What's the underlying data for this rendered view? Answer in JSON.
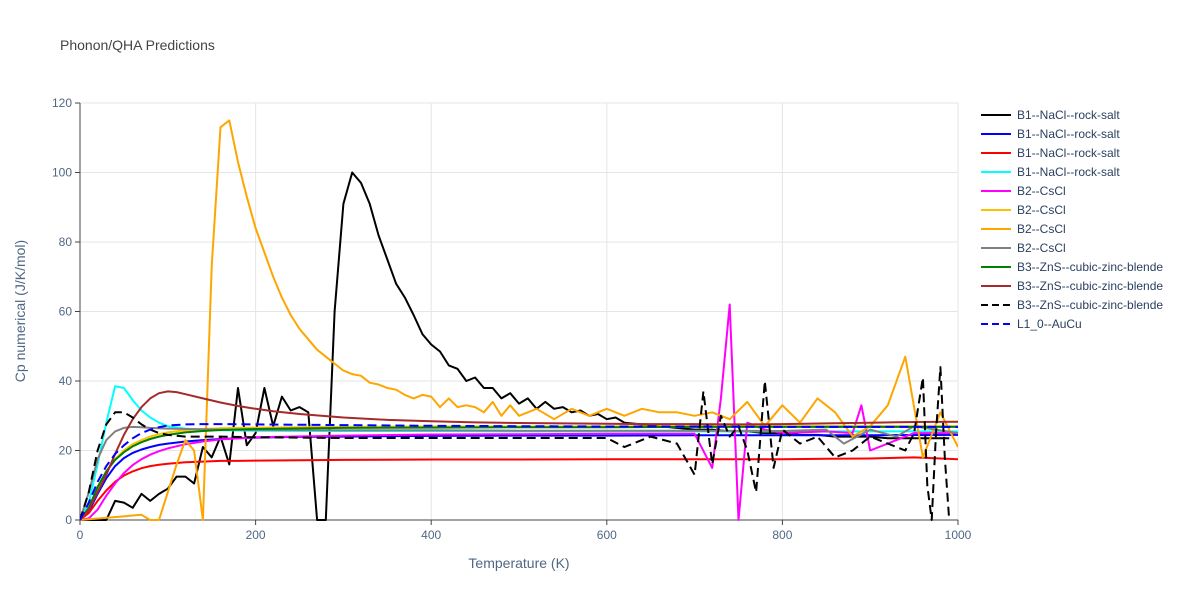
{
  "chart_data": {
    "type": "line",
    "title": "Phonon/QHA Predictions",
    "xlabel": "Temperature (K)",
    "ylabel": "Cp numerical (J/K/mol)",
    "xlim": [
      0,
      1000
    ],
    "ylim": [
      0,
      120
    ],
    "xticks": [
      0,
      200,
      400,
      600,
      800,
      1000
    ],
    "yticks": [
      0,
      20,
      40,
      60,
      80,
      100,
      120
    ],
    "grid": true,
    "legend": "right",
    "series": [
      {
        "name": "B1--NaCl--rock-salt",
        "color": "#000000",
        "dash": "solid",
        "x": [
          0,
          10,
          20,
          30,
          40,
          50,
          60,
          70,
          80,
          90,
          100,
          110,
          120,
          130,
          140,
          150,
          160,
          170,
          180,
          190,
          200,
          210,
          220,
          230,
          240,
          250,
          260,
          270,
          280,
          290,
          300,
          310,
          320,
          330,
          340,
          350,
          360,
          370,
          380,
          390,
          400,
          410,
          420,
          430,
          440,
          450,
          460,
          470,
          480,
          490,
          500,
          510,
          520,
          530,
          540,
          550,
          560,
          570,
          580,
          590,
          600,
          610,
          620,
          640,
          660,
          680,
          700,
          720,
          740,
          760,
          780,
          800,
          820,
          840,
          860,
          880,
          900,
          920,
          940,
          960,
          980,
          990
        ],
        "y": [
          0,
          0,
          0,
          0,
          5.5,
          5,
          3.5,
          7.5,
          5.5,
          7.5,
          9,
          12.5,
          12.5,
          10.5,
          21,
          18,
          24,
          16,
          38,
          21.5,
          25,
          38,
          27,
          35.5,
          31.5,
          32.5,
          31,
          0,
          0,
          60,
          91,
          100,
          97,
          91,
          82,
          75,
          68,
          64,
          59,
          53.5,
          50.5,
          48.5,
          44.5,
          43.5,
          40,
          41,
          38,
          38,
          35,
          36.5,
          33.5,
          35,
          32,
          34,
          32,
          32.5,
          31,
          31.5,
          30,
          30.5,
          29,
          29.5,
          28,
          27.5,
          27,
          26.5,
          26,
          26,
          25.5,
          25.5,
          25,
          25,
          24.5,
          24.5,
          24,
          24,
          24,
          23.5,
          23.5,
          23.5,
          23.5,
          23.5
        ]
      },
      {
        "name": "B1--NaCl--rock-salt",
        "color": "#0000ff",
        "dash": "solid",
        "x": [
          0,
          10,
          20,
          30,
          40,
          50,
          60,
          70,
          80,
          90,
          100,
          120,
          140,
          160,
          180,
          200,
          250,
          300,
          400,
          500,
          600,
          700,
          800,
          900,
          1000
        ],
        "y": [
          0,
          2.5,
          7.5,
          12,
          15.5,
          17.8,
          19.3,
          20.3,
          21,
          21.6,
          22,
          22.6,
          23,
          23.3,
          23.5,
          23.7,
          23.9,
          24,
          24.2,
          24.3,
          24.3,
          24.4,
          24.4,
          24.4,
          24.5
        ]
      },
      {
        "name": "B1--NaCl--rock-salt",
        "color": "#ff0000",
        "dash": "solid",
        "x": [
          0,
          10,
          20,
          30,
          40,
          50,
          60,
          70,
          80,
          90,
          100,
          120,
          140,
          160,
          180,
          200,
          250,
          300,
          400,
          500,
          600,
          700,
          800,
          850,
          900,
          950,
          1000
        ],
        "y": [
          0,
          2,
          5.5,
          8.5,
          11,
          12.8,
          14,
          14.9,
          15.5,
          15.9,
          16.2,
          16.6,
          16.8,
          17,
          17,
          17.1,
          17.2,
          17.3,
          17.4,
          17.4,
          17.5,
          17.5,
          17.5,
          17.6,
          17.7,
          18,
          17.5
        ]
      },
      {
        "name": "B1--NaCl--rock-salt",
        "color": "#00ffff",
        "dash": "solid",
        "x": [
          0,
          10,
          20,
          30,
          40,
          50,
          60,
          70,
          80,
          90,
          100,
          120,
          140,
          160,
          200,
          300,
          400,
          500,
          600,
          700,
          800,
          900,
          1000
        ],
        "y": [
          0,
          5,
          16,
          28,
          38.5,
          38,
          34.5,
          31.5,
          29.5,
          28,
          27,
          26.3,
          26,
          25.8,
          25.7,
          25.6,
          25.6,
          25.5,
          25.5,
          25.5,
          25.5,
          25.5,
          25.5
        ]
      },
      {
        "name": "B2--CsCl",
        "color": "#ff00ff",
        "dash": "solid",
        "x": [
          0,
          10,
          20,
          30,
          40,
          50,
          60,
          70,
          80,
          90,
          100,
          120,
          140,
          160,
          200,
          300,
          400,
          500,
          600,
          700,
          720,
          730,
          740,
          750,
          760,
          780,
          800,
          850,
          880,
          890,
          900,
          950,
          1000
        ],
        "y": [
          0,
          0.5,
          3,
          7,
          10.5,
          13.5,
          15.8,
          17.5,
          18.8,
          19.8,
          20.6,
          21.8,
          22.6,
          23.2,
          23.8,
          24.3,
          24.6,
          24.7,
          24.8,
          24.8,
          15,
          35,
          62,
          0,
          28,
          26,
          25,
          25.5,
          25,
          33,
          20,
          25,
          25
        ]
      },
      {
        "name": "B2--CsCl",
        "color": "#ffc000",
        "dash": "solid",
        "x": [
          0,
          10,
          20,
          30,
          40,
          50,
          60,
          70,
          80,
          90,
          100,
          120,
          140,
          160,
          200,
          300,
          400,
          500,
          600,
          700,
          800,
          900,
          1000
        ],
        "y": [
          0,
          3,
          9,
          14,
          17.5,
          20,
          21.8,
          23,
          24,
          24.7,
          25.2,
          25.8,
          26.2,
          26.4,
          26.6,
          26.8,
          26.9,
          26.9,
          26.9,
          27,
          27,
          27,
          27
        ]
      },
      {
        "name": "B2--CsCl",
        "color": "#ffa500",
        "dash": "solid",
        "x": [
          0,
          70,
          80,
          90,
          100,
          110,
          120,
          130,
          140,
          150,
          160,
          170,
          180,
          190,
          200,
          210,
          220,
          230,
          240,
          250,
          260,
          270,
          280,
          290,
          300,
          310,
          320,
          330,
          340,
          350,
          360,
          370,
          380,
          390,
          400,
          410,
          420,
          430,
          440,
          450,
          460,
          470,
          480,
          490,
          500,
          520,
          540,
          560,
          580,
          600,
          620,
          640,
          660,
          680,
          700,
          720,
          740,
          760,
          780,
          800,
          820,
          840,
          860,
          880,
          900,
          920,
          940,
          960,
          980,
          1000
        ],
        "y": [
          0,
          1.5,
          0,
          0,
          8,
          16,
          23,
          20,
          0,
          73,
          113,
          115,
          103,
          93,
          84,
          77,
          70,
          64,
          59,
          55,
          52,
          49,
          47,
          45,
          43,
          42,
          41.5,
          39.5,
          39,
          38,
          37.5,
          36,
          35,
          36,
          35.5,
          32.5,
          35,
          32.5,
          33,
          32.5,
          31,
          34,
          30,
          33,
          30,
          32,
          29,
          32,
          30,
          32,
          30,
          32,
          31,
          31,
          30,
          31,
          29,
          34,
          27,
          33,
          28,
          35,
          31,
          24,
          27,
          33,
          47,
          18,
          31,
          21
        ]
      },
      {
        "name": "B2--CsCl",
        "color": "#808080",
        "dash": "solid",
        "x": [
          0,
          10,
          20,
          30,
          40,
          50,
          60,
          70,
          80,
          90,
          100,
          120,
          140,
          160,
          200,
          300,
          400,
          500,
          600,
          700,
          800,
          850,
          870,
          900,
          930,
          950,
          1000
        ],
        "y": [
          0,
          8,
          17.5,
          23,
          25.5,
          26.5,
          26.8,
          26.7,
          26.5,
          26.4,
          26.3,
          26.2,
          26.1,
          26,
          25.9,
          25.8,
          25.8,
          25.7,
          25.7,
          25.7,
          25.6,
          26,
          22,
          26,
          24,
          27,
          25
        ]
      },
      {
        "name": "B3--ZnS--cubic-zinc-blende",
        "color": "#008000",
        "dash": "solid",
        "x": [
          0,
          10,
          20,
          30,
          40,
          50,
          60,
          70,
          80,
          90,
          100,
          120,
          140,
          160,
          200,
          300,
          400,
          500,
          600,
          700,
          800,
          900,
          1000
        ],
        "y": [
          0,
          3.5,
          9.5,
          14,
          17.3,
          19.5,
          21.2,
          22.4,
          23.3,
          24,
          24.5,
          25.2,
          25.6,
          25.9,
          26.2,
          26.5,
          26.6,
          26.7,
          26.7,
          26.8,
          26.8,
          26.8,
          26.8
        ]
      },
      {
        "name": "B3--ZnS--cubic-zinc-blende",
        "color": "#a52a2a",
        "dash": "solid",
        "x": [
          0,
          10,
          20,
          30,
          40,
          50,
          60,
          70,
          80,
          90,
          100,
          110,
          120,
          140,
          160,
          180,
          200,
          220,
          250,
          300,
          350,
          400,
          450,
          500,
          550,
          600,
          650,
          700,
          750,
          800,
          850,
          900,
          950,
          1000
        ],
        "y": [
          0,
          3,
          8,
          13,
          19,
          24.5,
          29,
          32.5,
          35,
          36.5,
          37,
          36.8,
          36.2,
          35,
          33.8,
          32.8,
          32,
          31.3,
          30.5,
          29.5,
          28.8,
          28.4,
          28.1,
          27.9,
          27.8,
          27.7,
          27.6,
          27.6,
          27.5,
          27.6,
          27.8,
          28,
          28.2,
          28.3
        ]
      },
      {
        "name": "B3--ZnS--cubic-zinc-blende",
        "color": "#000000",
        "dash": "dash",
        "x": [
          0,
          10,
          20,
          30,
          40,
          50,
          60,
          70,
          80,
          90,
          100,
          120,
          140,
          160,
          200,
          250,
          300,
          400,
          500,
          600,
          620,
          650,
          680,
          700,
          710,
          720,
          730,
          740,
          750,
          760,
          770,
          780,
          790,
          800,
          820,
          840,
          860,
          880,
          900,
          920,
          940,
          950,
          960,
          965,
          970,
          975,
          980,
          985,
          990
        ],
        "y": [
          0,
          8,
          20,
          27.5,
          31,
          31,
          29.5,
          27.5,
          26,
          25,
          24.5,
          24,
          24,
          24,
          23.8,
          23.7,
          23.6,
          23.6,
          23.6,
          23.6,
          21,
          24,
          22,
          13,
          37,
          16,
          30,
          24,
          27,
          20,
          8,
          40,
          15,
          26,
          22,
          24,
          18,
          20,
          24,
          22,
          20,
          25,
          41,
          10,
          0,
          25,
          44,
          18,
          0
        ]
      },
      {
        "name": "L1_0--AuCu",
        "color": "#0000ff",
        "dash": "dash",
        "x": [
          0,
          10,
          20,
          30,
          40,
          50,
          60,
          70,
          80,
          90,
          100,
          120,
          140,
          160,
          200,
          300,
          400,
          500,
          600,
          700,
          800,
          900,
          1000
        ],
        "y": [
          0,
          5,
          11,
          15.5,
          19,
          21.5,
          23.5,
          25,
          26,
          26.7,
          27.2,
          27.5,
          27.6,
          27.6,
          27.5,
          27.3,
          27.1,
          27,
          26.9,
          26.9,
          26.8,
          26.8,
          26.8
        ]
      }
    ]
  }
}
